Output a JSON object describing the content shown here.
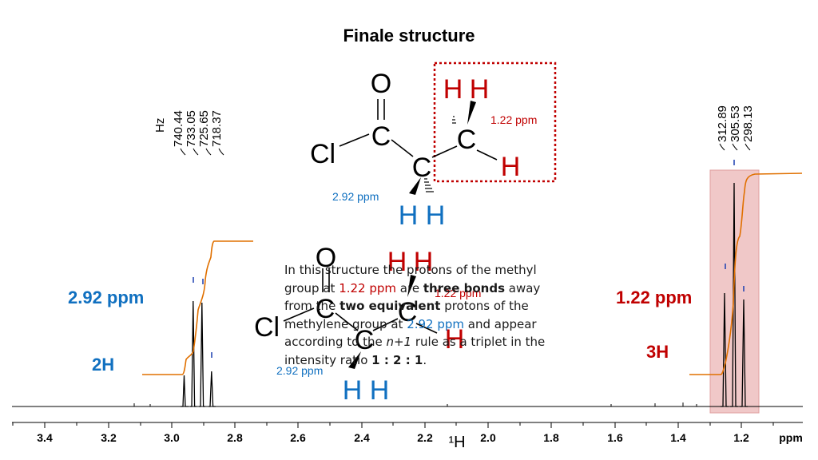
{
  "title": "Finale structure",
  "structure_top": {
    "atoms": {
      "o": "O",
      "c_carbonyl": "C",
      "cl": "Cl",
      "c_methylene": "C",
      "c_methyl": "C",
      "h1": "H",
      "h2": "H",
      "h3": "H",
      "h4": "H",
      "h5": "H"
    },
    "methyl_ppm": "1.22 ppm",
    "methylene_ppm": "2.92 ppm"
  },
  "structure_overlay": {
    "atoms": {
      "o": "O",
      "c_carbonyl": "C",
      "cl": "Cl",
      "c_methylene": "C",
      "c_methyl": "C",
      "h1": "H",
      "h2": "H",
      "h3": "H",
      "h4": "H",
      "h5": "H"
    },
    "methyl_ppm": "1.22 ppm",
    "methylene_ppm": "2.92 ppm"
  },
  "description": {
    "p1": "In this structure the protons of the methyl group at ",
    "ppm1": "1.22 ppm",
    "p2": " are ",
    "bold1": "three bonds",
    "p3": " away from the ",
    "bold2": "two equivalent",
    "p4": " protons of the methylene group at ",
    "ppm2": "2.92 ppm",
    "p5": " and appear according to the ",
    "italic1": "n+1",
    "p6": " rule as a triplet in the intensity ratio ",
    "bold3": "1 : 2 : 1",
    "p7": "."
  },
  "left_labels": {
    "ppm": "2.92 ppm",
    "integration": "2H"
  },
  "right_labels": {
    "ppm": "1.22 ppm",
    "integration": "3H"
  },
  "peak_lists": {
    "unit": "Hz",
    "left": [
      "740.44",
      "733.05",
      "725.65",
      "718.37"
    ],
    "right": [
      "312.89",
      "305.53",
      "298.13"
    ]
  },
  "axis": {
    "unit_label": "ppm",
    "nucleus_label": "¹H",
    "ticks": [
      "3.4",
      "3.2",
      "3.0",
      "2.8",
      "2.6",
      "2.4",
      "2.2",
      "2.0",
      "1.8",
      "1.6",
      "1.4",
      "1.2"
    ]
  },
  "colors": {
    "red": "#c00000",
    "blue": "#1070c0",
    "integral": "#e07000",
    "highlight": "#f0c0c0"
  }
}
